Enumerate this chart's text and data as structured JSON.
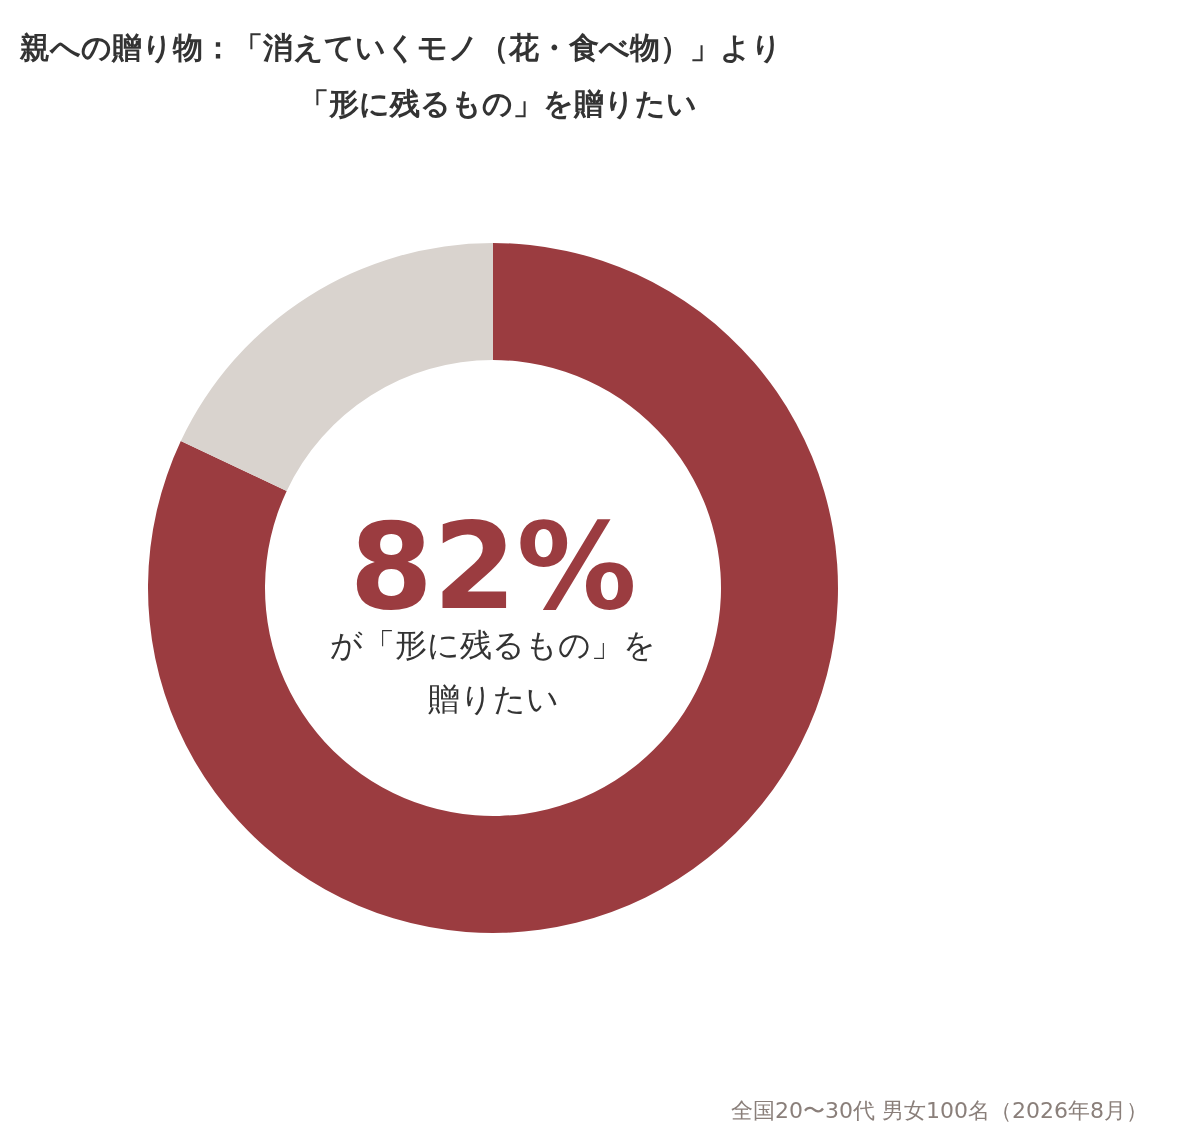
{
  "chart_data": {
    "type": "donut",
    "title": "親への贈り物：「消えていくモノ（花・食べ物）」より「形に残るもの」を贈りたい",
    "categories": [
      null,
      null
    ],
    "values": [
      82,
      18
    ],
    "colors": [
      "#9b3c40",
      "#d9d3ce"
    ],
    "value_labels": [
      "82%",
      null
    ],
    "annotations": [
      "が「形に残るもの」を贈りたい",
      "全国20〜30代 男女100名（2026年8月）"
    ]
  }
}
